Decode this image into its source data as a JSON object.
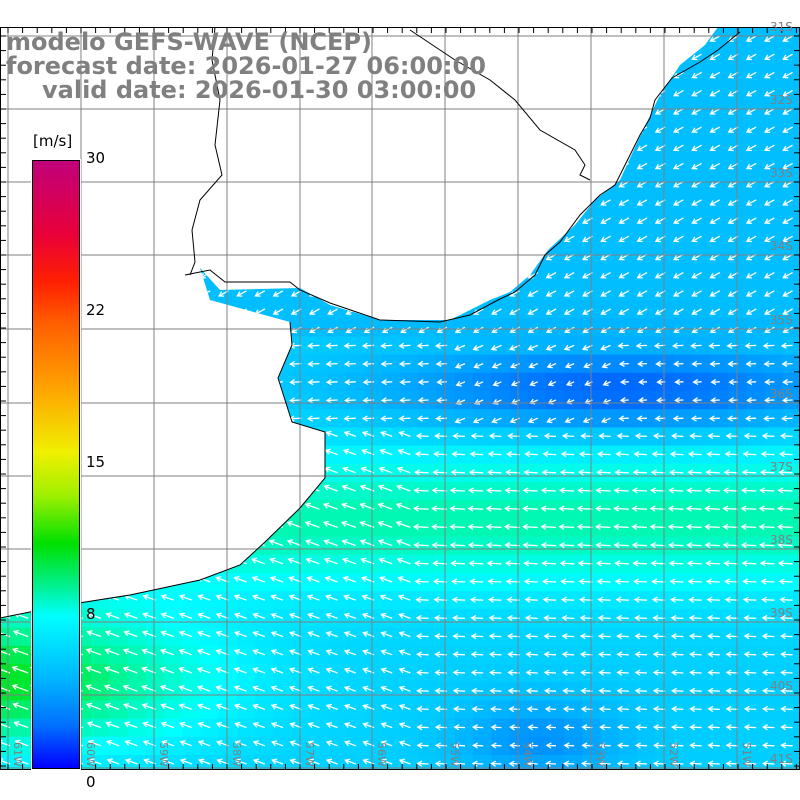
{
  "title": {
    "line1": "modelo GEFS-WAVE (NCEP)",
    "line2": "forecast date: 2026-01-27 06:00:00",
    "line3": "valid date: 2026-01-30 03:00:00"
  },
  "colorbar": {
    "unit": "[m/s]",
    "labels": [
      "30",
      "22",
      "15",
      "8",
      "0"
    ],
    "range": [
      0,
      30
    ]
  },
  "axes": {
    "lon_labels": [
      "61W",
      "60W",
      "59W",
      "58W",
      "57W",
      "56W",
      "55W",
      "54W",
      "53W",
      "52W",
      "51W"
    ],
    "lat_labels": [
      "31S",
      "32S",
      "33S",
      "34S",
      "35S",
      "36S",
      "37S",
      "38S",
      "39S",
      "40S",
      "41S"
    ]
  },
  "colors": {
    "grid": "#808080",
    "coast": "#000000",
    "vector": "#ffffff",
    "land": "#ffffff"
  }
}
